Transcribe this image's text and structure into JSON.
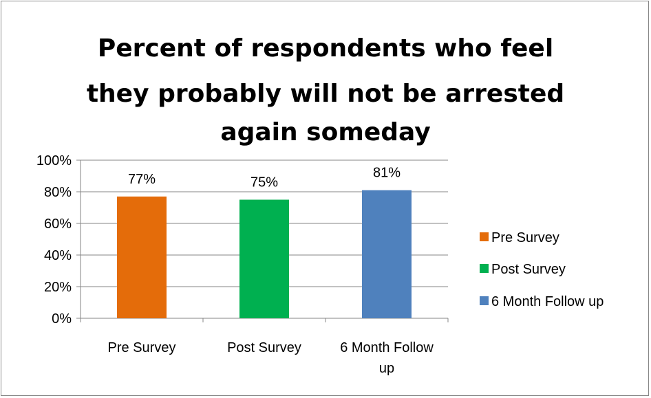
{
  "chart_data": {
    "type": "bar",
    "title": "Percent of respondents who feel they probably will not be arrested again someday",
    "title_lines": [
      "Percent of respondents who feel",
      "they probably will not be arrested",
      "again someday"
    ],
    "categories": [
      "Pre Survey",
      "Post Survey",
      "6 Month Follow up"
    ],
    "category_lines": [
      [
        "Pre Survey"
      ],
      [
        "Post Survey"
      ],
      [
        "6 Month Follow",
        "up"
      ]
    ],
    "values": [
      77,
      75,
      81
    ],
    "data_labels": [
      "77%",
      "75%",
      "81%"
    ],
    "colors": [
      "#E46C0A",
      "#00B050",
      "#4F81BD"
    ],
    "ylim": [
      0,
      100
    ],
    "yticks": [
      0,
      20,
      40,
      60,
      80,
      100
    ],
    "ytick_labels": [
      "0%",
      "20%",
      "40%",
      "60%",
      "80%",
      "100%"
    ],
    "xlabel": "",
    "ylabel": "",
    "grid": true,
    "legend": {
      "placement": "right",
      "entries": [
        "Pre Survey",
        "Post Survey",
        "6 Month Follow up"
      ]
    }
  }
}
